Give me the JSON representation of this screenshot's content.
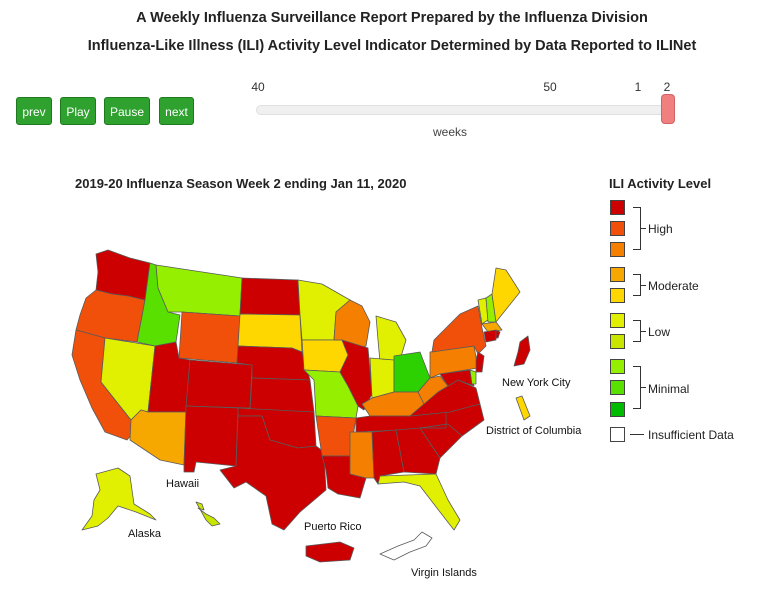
{
  "header": {
    "title": "A Weekly Influenza Surveillance Report Prepared by the Influenza Division",
    "subtitle": "Influenza-Like Illness (ILI) Activity Level Indicator Determined by Data Reported to ILINet"
  },
  "controls": {
    "prev": "prev",
    "play": "Play",
    "pause": "Pause",
    "next": "next"
  },
  "slider": {
    "ticks": [
      "40",
      "50",
      "1",
      "2"
    ],
    "axis_label": "weeks",
    "current_week": "2"
  },
  "map": {
    "title": "2019-20 Influenza Season Week 2 ending Jan 11, 2020",
    "labels": {
      "hawaii": "Hawaii",
      "alaska": "Alaska",
      "puerto_rico": "Puerto Rico",
      "virgin_islands": "Virgin Islands",
      "new_york_city": "New York City",
      "dc": "District of Columbia"
    },
    "states": {
      "WA": "#cc0000",
      "OR": "#f0500a",
      "CA": "#f0500a",
      "NV": "#e0f000",
      "ID": "#5ae000",
      "MT": "#94f000",
      "WY": "#f0500a",
      "UT": "#cc0000",
      "AZ": "#f7a800",
      "CO": "#cc0000",
      "NM": "#cc0000",
      "ND": "#cc0000",
      "SD": "#ffd700",
      "NE": "#cc0000",
      "KS": "#cc0000",
      "OK": "#cc0000",
      "TX": "#cc0000",
      "MN": "#e0f000",
      "IA": "#ffd700",
      "MO": "#94f000",
      "AR": "#f0500a",
      "LA": "#cc0000",
      "WI": "#f57f00",
      "IL": "#cc0000",
      "MI": "#e0f000",
      "IN": "#e0f000",
      "OH": "#2dd000",
      "KY": "#f57f00",
      "TN": "#cc0000",
      "MS": "#f57f00",
      "AL": "#cc0000",
      "GA": "#cc0000",
      "FL": "#e0f000",
      "SC": "#cc0000",
      "NC": "#cc0000",
      "VA": "#cc0000",
      "WV": "#f57f00",
      "PA": "#f57f00",
      "NY": "#f0500a",
      "VT": "#e0f000",
      "NH": "#94f000",
      "ME": "#ffd700",
      "MA": "#f7a800",
      "CT": "#cc0000",
      "RI": "#cc0000",
      "NJ": "#cc0000",
      "DE": "#94f000",
      "MD": "#cc0000",
      "AK": "#e0f000",
      "HI": "#c8e600",
      "PR": "#cc0000",
      "VI": "#ffffff",
      "NYC": "#cc0000",
      "DC": "#ffd700"
    }
  },
  "legend": {
    "title": "ILI Activity Level",
    "swatches": [
      "#cc0000",
      "#f0500a",
      "#f57f00",
      "#f7a800",
      "#ffd700",
      "#e0f000",
      "#c8e600",
      "#94f000",
      "#5ae000",
      "#00bb00",
      "#ffffff"
    ],
    "groups": {
      "high": "High",
      "moderate": "Moderate",
      "low": "Low",
      "minimal": "Minimal",
      "insufficient": "Insufficient Data"
    }
  }
}
